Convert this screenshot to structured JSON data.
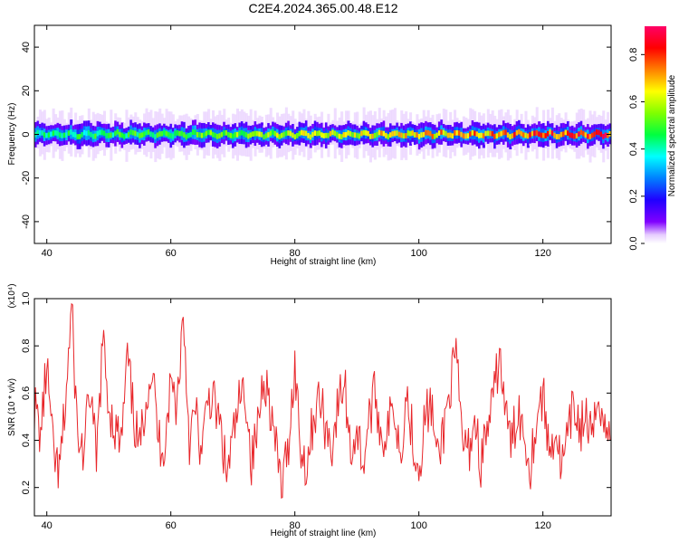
{
  "chart_data": [
    {
      "type": "heatmap",
      "title": "C2E4.2024.365.00.48.E12",
      "xlabel": "Height of straight line (km)",
      "ylabel": "Frequency (Hz)",
      "xlim": [
        38,
        131
      ],
      "ylim": [
        -50,
        50
      ],
      "xticks": [
        "40",
        "60",
        "80",
        "100",
        "120"
      ],
      "yticks": [
        "40",
        "20",
        "0",
        "-20",
        "-40"
      ],
      "colorbar": {
        "label": "Normalized spectral amplitude",
        "range": [
          0,
          0.92
        ],
        "ticks": [
          "0.8",
          "0.6",
          "0.4",
          "0.2",
          "0.0"
        ],
        "colors": [
          "#ffffff",
          "#f2e6ff",
          "#b58cff",
          "#6a00ff",
          "#2200ff",
          "#0055ff",
          "#00aaff",
          "#00ffcc",
          "#00ff44",
          "#88ff00",
          "#ffff00",
          "#ffaa00",
          "#ff5500",
          "#ff0000",
          "#ff0066"
        ]
      },
      "band": {
        "center_hz": 0,
        "half_width_hz": 5,
        "halo_half_width_hz": 10
      },
      "peak_track": {
        "amplitude_start": 0.45,
        "amplitude_end": 0.88
      },
      "grid": false
    },
    {
      "type": "line",
      "xlabel": "Height of straight line (km)",
      "ylabel": "SNR (10 * v/v)",
      "multiplier": "(x10⁴)",
      "xlim": [
        38,
        131
      ],
      "ylim": [
        0.08,
        1.0
      ],
      "xticks": [
        "40",
        "60",
        "80",
        "100",
        "120"
      ],
      "yticks": [
        "1.0",
        "0.8",
        "0.6",
        "0.4",
        "0.2"
      ],
      "line_color": "#e8262a",
      "grid": false,
      "series": [
        {
          "x": [
            38,
            39,
            40,
            41,
            42,
            43,
            44,
            45,
            46,
            47,
            48,
            49,
            50,
            51,
            52,
            53,
            54,
            55,
            56,
            57,
            58,
            59,
            60,
            61,
            62,
            63,
            64,
            65,
            66,
            67,
            68,
            69,
            70,
            71,
            72,
            73,
            74,
            75,
            76,
            77,
            78,
            79,
            80,
            81,
            82,
            83,
            84,
            85,
            86,
            87,
            88,
            89,
            90,
            91,
            92,
            93,
            94,
            95,
            96,
            97,
            98,
            99,
            100,
            101,
            102,
            103,
            104,
            105,
            106,
            107,
            108,
            109,
            110,
            111,
            112,
            113,
            114,
            115,
            116,
            117,
            118,
            119,
            120,
            121,
            122,
            123,
            124,
            125,
            126,
            127,
            128,
            129,
            130,
            131
          ],
          "y": [
            0.55,
            0.42,
            0.72,
            0.35,
            0.25,
            0.55,
            0.96,
            0.4,
            0.35,
            0.62,
            0.3,
            0.82,
            0.55,
            0.45,
            0.38,
            0.75,
            0.5,
            0.35,
            0.6,
            0.7,
            0.4,
            0.38,
            0.65,
            0.55,
            0.95,
            0.4,
            0.52,
            0.32,
            0.6,
            0.55,
            0.45,
            0.25,
            0.4,
            0.55,
            0.62,
            0.3,
            0.45,
            0.7,
            0.55,
            0.35,
            0.2,
            0.4,
            0.72,
            0.35,
            0.3,
            0.5,
            0.58,
            0.45,
            0.38,
            0.55,
            0.65,
            0.35,
            0.45,
            0.3,
            0.5,
            0.6,
            0.4,
            0.45,
            0.55,
            0.35,
            0.6,
            0.42,
            0.28,
            0.5,
            0.55,
            0.3,
            0.45,
            0.62,
            0.75,
            0.4,
            0.35,
            0.5,
            0.3,
            0.45,
            0.55,
            0.78,
            0.5,
            0.38,
            0.55,
            0.42,
            0.3,
            0.5,
            0.6,
            0.35,
            0.45,
            0.28,
            0.4,
            0.55,
            0.45,
            0.5,
            0.38,
            0.62,
            0.45,
            0.4
          ]
        }
      ]
    }
  ]
}
